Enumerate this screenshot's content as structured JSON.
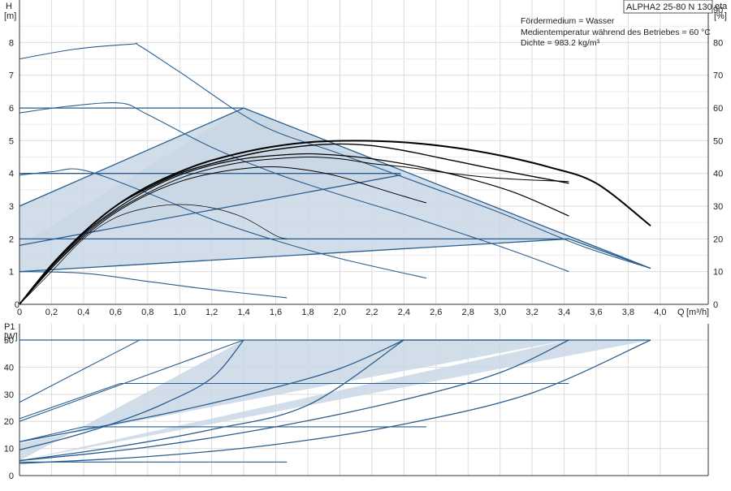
{
  "chart_data": [
    {
      "type": "line",
      "title": "ALPHA2 25-80 N 130",
      "notes": [
        "Fördermedium = Wasser",
        "Medientemperatur während des Betriebes = 60 °C",
        "Dichte = 983.2 kg/m³"
      ],
      "ylabel": "H",
      "yunit": "[m]",
      "y2label": "eta",
      "y2unit": "[%]",
      "xlabel": "Q",
      "xunit": "[m³/h]",
      "xlim": [
        0,
        4.3
      ],
      "ylim": [
        0,
        9.3
      ],
      "y2lim": [
        0,
        93
      ],
      "xticks": [
        "0",
        "0,2",
        "0,4",
        "0,6",
        "0,8",
        "1,0",
        "1,2",
        "1,4",
        "1,6",
        "1,8",
        "2,0",
        "2,2",
        "2,4",
        "2,6",
        "2,8",
        "3,0",
        "3,2",
        "3,4",
        "3,6",
        "3,8",
        "4,0"
      ],
      "yticks": [
        "0",
        "1",
        "2",
        "3",
        "4",
        "5",
        "6",
        "7",
        "8"
      ],
      "y2ticks": [
        "0",
        "10",
        "20",
        "30",
        "40",
        "50",
        "60",
        "70",
        "80",
        "90"
      ],
      "grid": true,
      "band_polygons": [
        [
          [
            0,
            1.0
          ],
          [
            0,
            3.0
          ],
          [
            1.4,
            6.0
          ],
          [
            3.94,
            1.1
          ],
          [
            3.43,
            2.0
          ]
        ],
        [
          [
            0,
            1.8
          ],
          [
            2.38,
            3.95
          ],
          [
            1.4,
            6.0
          ]
        ]
      ],
      "series": [
        {
          "color": "#2a5d8f",
          "width": 1.1,
          "x": [
            0,
            0.35,
            0.7,
            0.75,
            1.0,
            1.5,
            2.0,
            2.5,
            3.0,
            3.5,
            3.94
          ],
          "values": [
            7.5,
            7.8,
            7.95,
            7.9,
            7.1,
            5.5,
            4.6,
            3.7,
            2.8,
            1.8,
            1.1
          ]
        },
        {
          "color": "#2a5d8f",
          "width": 1.1,
          "x": [
            0,
            0.3,
            0.63,
            0.8,
            1.2,
            1.6,
            2.0,
            2.4,
            2.8,
            3.1,
            3.43
          ],
          "values": [
            5.85,
            6.05,
            6.15,
            5.8,
            4.8,
            4.0,
            3.35,
            2.75,
            2.1,
            1.6,
            1.0
          ]
        },
        {
          "color": "#2a5d8f",
          "width": 1.1,
          "x": [
            0,
            0.2,
            0.4,
            0.8,
            1.2,
            1.6,
            2.0,
            2.54
          ],
          "values": [
            3.95,
            4.05,
            4.1,
            3.4,
            2.6,
            1.95,
            1.4,
            0.8
          ]
        },
        {
          "color": "#2a5d8f",
          "width": 1.1,
          "x": [
            0,
            0.4,
            0.8,
            1.2,
            1.67
          ],
          "values": [
            1.0,
            0.95,
            0.7,
            0.45,
            0.2
          ]
        },
        {
          "color": "#2a5d8f",
          "width": 1.3,
          "x": [
            0,
            1.4
          ],
          "values": [
            6.0,
            6.0
          ]
        },
        {
          "color": "#2a5d8f",
          "width": 1.3,
          "x": [
            0,
            2.38
          ],
          "values": [
            4.0,
            4.0
          ]
        },
        {
          "color": "#2a5d8f",
          "width": 1.3,
          "x": [
            0,
            3.43
          ],
          "values": [
            2.0,
            2.0
          ]
        },
        {
          "color": "#2a5d8f",
          "width": 1.3,
          "x": [
            0,
            1.4,
            3.94
          ],
          "values": [
            3.0,
            6.0,
            1.1
          ]
        },
        {
          "color": "#2a5d8f",
          "width": 1.3,
          "x": [
            0,
            3.43,
            3.94
          ],
          "values": [
            1.0,
            2.0,
            1.1
          ]
        },
        {
          "color": "#2a5d8f",
          "width": 1.3,
          "x": [
            0,
            2.38
          ],
          "values": [
            1.8,
            3.95
          ]
        },
        {
          "color": "#000000",
          "width": 2.0,
          "axis": "eta",
          "x": [
            0,
            0.2,
            0.4,
            0.6,
            0.8,
            1.0,
            1.2,
            1.5,
            1.8,
            2.1,
            2.4,
            2.7,
            3.0,
            3.3,
            3.6,
            3.94
          ],
          "values": [
            0,
            12,
            22,
            30,
            36,
            40.5,
            44,
            47.5,
            49.5,
            50,
            49.5,
            48,
            45.5,
            42,
            37,
            24
          ]
        },
        {
          "color": "#000000",
          "width": 1.4,
          "axis": "eta",
          "x": [
            0,
            0.2,
            0.4,
            0.6,
            0.8,
            1.0,
            1.2,
            1.5,
            1.8,
            2.0,
            2.2,
            2.4,
            2.7,
            3.0,
            3.43
          ],
          "values": [
            0,
            12,
            22,
            30,
            35.5,
            40,
            43,
            46.5,
            48.5,
            49,
            48.5,
            47,
            44,
            41,
            37
          ]
        },
        {
          "color": "#000000",
          "width": 1.2,
          "axis": "eta",
          "x": [
            0,
            0.2,
            0.4,
            0.6,
            0.8,
            1.0,
            1.2,
            1.4,
            1.6,
            1.8,
            2.0,
            2.2,
            2.5,
            2.8,
            3.1,
            3.43
          ],
          "values": [
            0,
            11.5,
            21.5,
            29,
            35,
            39.5,
            42.5,
            44.5,
            45.5,
            46,
            45.5,
            44.5,
            42,
            38.5,
            34,
            27
          ]
        },
        {
          "color": "#000000",
          "width": 1.0,
          "axis": "eta",
          "x": [
            0,
            0.2,
            0.4,
            0.6,
            0.8,
            1.0,
            1.2,
            1.4,
            1.6,
            1.8,
            2.0,
            2.2,
            2.4,
            2.54
          ],
          "values": [
            0,
            11,
            20.5,
            28,
            33.5,
            37.5,
            40,
            41.5,
            42,
            41,
            39,
            36,
            33,
            31
          ]
        },
        {
          "color": "#000000",
          "width": 1.0,
          "axis": "eta",
          "x": [
            0,
            0.2,
            0.4,
            0.6,
            0.8,
            1.0,
            1.2,
            1.4,
            1.6,
            1.8,
            2.0,
            2.2,
            2.4,
            2.7,
            3.0,
            3.43
          ],
          "values": [
            0,
            11,
            21,
            28.5,
            34,
            38.5,
            41.5,
            43.5,
            44.5,
            45,
            44.5,
            43,
            42,
            40,
            38.5,
            37.5
          ]
        },
        {
          "color": "#000000",
          "width": 0.7,
          "axis": "eta",
          "x": [
            0,
            0.2,
            0.4,
            0.6,
            0.8,
            1.0,
            1.2,
            1.4,
            1.6,
            1.67
          ],
          "values": [
            0,
            10,
            20,
            26.5,
            29.5,
            30.5,
            29.5,
            26.5,
            21,
            20
          ]
        }
      ]
    },
    {
      "type": "line",
      "ylabel": "P1",
      "yunit": "[W]",
      "xlim": [
        0,
        4.3
      ],
      "ylim": [
        0,
        56
      ],
      "yticks": [
        "0",
        "10",
        "20",
        "30",
        "40",
        "50"
      ],
      "grid": true,
      "band_polygons": [
        [
          [
            0,
            5.5
          ],
          [
            1.4,
            50
          ],
          [
            3.43,
            50
          ],
          [
            0,
            12
          ]
        ],
        [
          [
            0,
            5.5
          ],
          [
            3.94,
            50
          ],
          [
            3.43,
            50
          ]
        ]
      ],
      "series": [
        {
          "color": "#2a5d8f",
          "width": 1.1,
          "x": [
            0,
            0.75,
            3.94
          ],
          "values": [
            27,
            50,
            50
          ]
        },
        {
          "color": "#2a5d8f",
          "width": 1.1,
          "x": [
            0,
            0.63,
            3.43
          ],
          "values": [
            21,
            34,
            34
          ]
        },
        {
          "color": "#2a5d8f",
          "width": 1.1,
          "x": [
            0,
            0.4,
            2.54
          ],
          "values": [
            12.5,
            18,
            18
          ]
        },
        {
          "color": "#2a5d8f",
          "width": 1.1,
          "x": [
            0,
            1.67
          ],
          "values": [
            5,
            5
          ]
        },
        {
          "color": "#2a5d8f",
          "width": 1.1,
          "x": [
            0,
            0.7,
            1.4
          ],
          "values": [
            20,
            35,
            50
          ]
        },
        {
          "color": "#2a5d8f",
          "width": 1.3,
          "x": [
            0,
            1.4,
            3.94
          ],
          "values": [
            50,
            50,
            50
          ]
        },
        {
          "color": "#2a5d8f",
          "width": 1.3,
          "x": [
            0,
            0.3,
            0.6,
            0.9,
            1.2,
            1.4
          ],
          "values": [
            9.5,
            14,
            19.5,
            26.5,
            36,
            50
          ]
        },
        {
          "color": "#2a5d8f",
          "width": 1.3,
          "x": [
            0,
            0.5,
            1.0,
            1.5,
            2.0,
            2.4
          ],
          "values": [
            12.5,
            18,
            24,
            31,
            39.5,
            50
          ]
        },
        {
          "color": "#2a5d8f",
          "width": 1.3,
          "x": [
            0,
            0.6,
            1.2,
            1.8,
            2.4
          ],
          "values": [
            5.5,
            10.5,
            17,
            26,
            50
          ]
        },
        {
          "color": "#2a5d8f",
          "width": 1.3,
          "x": [
            0,
            0.8,
            1.6,
            2.4,
            3.0,
            3.43
          ],
          "values": [
            5.5,
            10.5,
            18,
            28,
            38,
            50
          ]
        },
        {
          "color": "#2a5d8f",
          "width": 1.3,
          "x": [
            0,
            0.8,
            1.6,
            2.4,
            3.2,
            3.94
          ],
          "values": [
            4.5,
            7,
            11.5,
            19,
            30.5,
            50
          ]
        },
        {
          "color": "#2a5d8f",
          "width": 1.3,
          "x": [
            2.38,
            3.43
          ],
          "values": [
            50,
            50
          ]
        }
      ]
    }
  ]
}
